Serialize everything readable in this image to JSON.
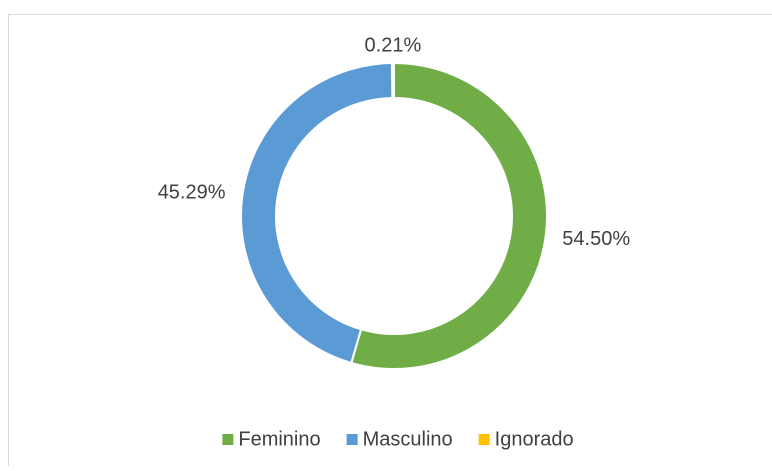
{
  "chart_data": {
    "type": "donut",
    "categories": [
      "Feminino",
      "Masculino",
      "Ignorado"
    ],
    "values": [
      54.5,
      45.29,
      0.21
    ],
    "value_labels": [
      "54.50%",
      "45.29%",
      "0.21%"
    ],
    "colors": [
      "#70ad47",
      "#5b9bd5",
      "#ffc000"
    ],
    "legend": "bottom"
  }
}
